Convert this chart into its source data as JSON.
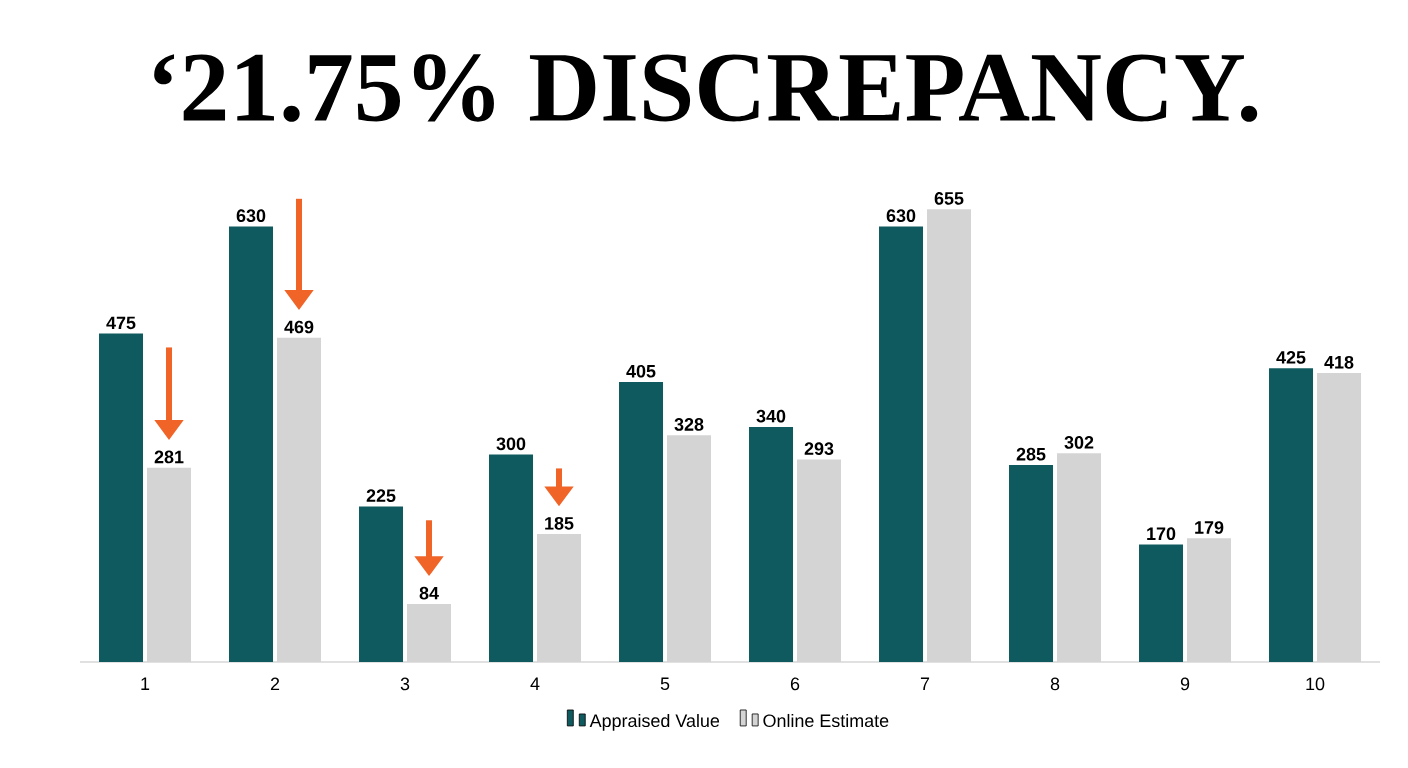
{
  "chart_data": {
    "type": "bar",
    "title": "‘21.75% DISCREPANCY.",
    "categories": [
      "1",
      "2",
      "3",
      "4",
      "5",
      "6",
      "7",
      "8",
      "9",
      "10"
    ],
    "series": [
      {
        "name": "Appraised Value",
        "color": "#0f5a5e",
        "values": [
          475,
          630,
          225,
          300,
          405,
          340,
          630,
          285,
          170,
          425
        ]
      },
      {
        "name": "Online Estimate",
        "color": "#d4d4d4",
        "values": [
          281,
          469,
          84,
          185,
          328,
          293,
          655,
          302,
          179,
          418
        ]
      }
    ],
    "tick_labels": "x",
    "data_labels": true,
    "legend": "bottom"
  }
}
